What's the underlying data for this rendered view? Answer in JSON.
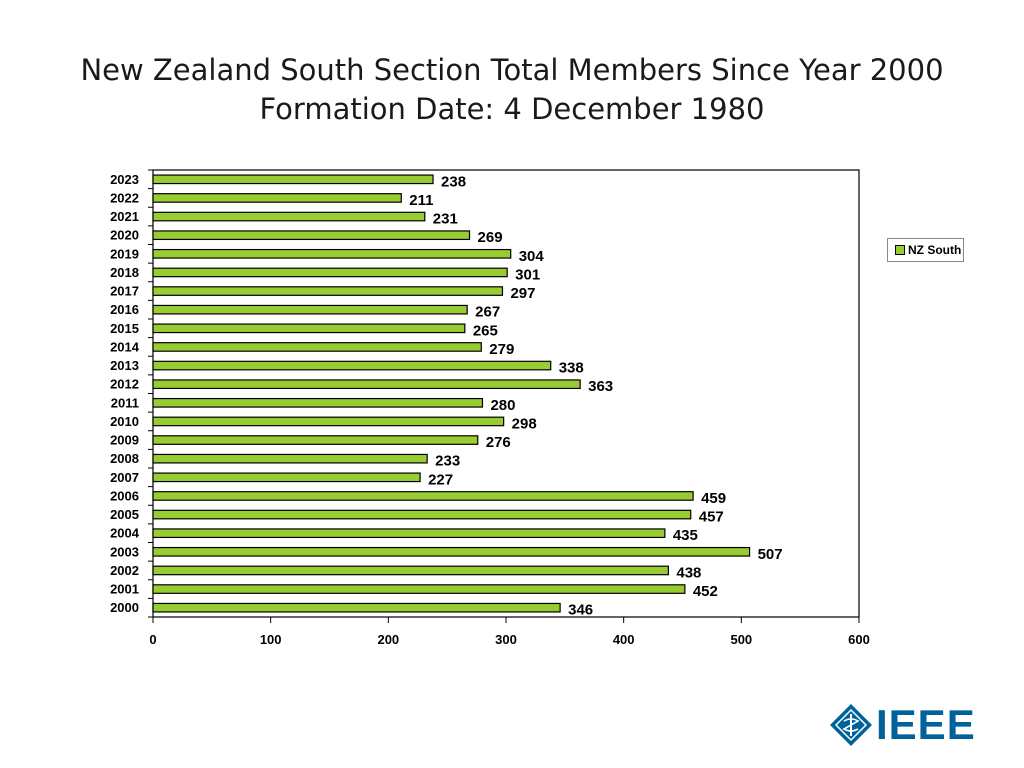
{
  "title_line1": "New Zealand South Section Total Members Since Year 2000",
  "title_line2": "Formation Date: 4 December 1980",
  "logo_text": "IEEE",
  "colors": {
    "bar": "#99cc33",
    "bar_stroke": "#000000",
    "logo": "#00629b"
  },
  "chart_data": {
    "type": "bar",
    "orientation": "horizontal",
    "categories": [
      "2023",
      "2022",
      "2021",
      "2020",
      "2019",
      "2018",
      "2017",
      "2016",
      "2015",
      "2014",
      "2013",
      "2012",
      "2011",
      "2010",
      "2009",
      "2008",
      "2007",
      "2006",
      "2005",
      "2004",
      "2003",
      "2002",
      "2001",
      "2000"
    ],
    "series": [
      {
        "name": "NZ South",
        "values": [
          238,
          211,
          231,
          269,
          304,
          301,
          297,
          267,
          265,
          279,
          338,
          363,
          280,
          298,
          276,
          233,
          227,
          459,
          457,
          435,
          507,
          438,
          452,
          346
        ]
      }
    ],
    "xlim": [
      0,
      600
    ],
    "xticks": [
      0,
      100,
      200,
      300,
      400,
      500,
      600
    ],
    "grid": false,
    "legend": "right"
  }
}
